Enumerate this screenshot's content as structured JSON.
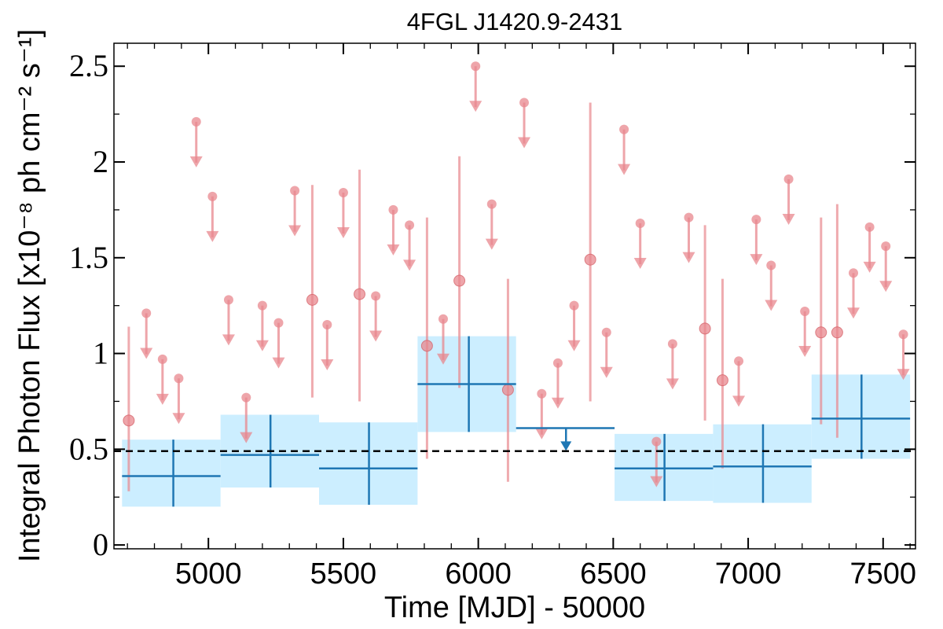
{
  "chart_data": {
    "type": "scatter",
    "title": "4FGL J1420.9-2431",
    "xlabel": "Time [MJD] - 50000",
    "ylabel": "Integral Photon Flux [x10⁻⁸ ph cm⁻² s⁻¹]",
    "xlim": [
      4650,
      7620
    ],
    "ylim": [
      -0.02,
      2.62
    ],
    "xticks": [
      5000,
      5500,
      6000,
      6500,
      7000,
      7500
    ],
    "xtick_labels": [
      "5000",
      "5500",
      "6000",
      "6500",
      "7000",
      "7500"
    ],
    "yticks": [
      0,
      0.5,
      1,
      1.5,
      2,
      2.5
    ],
    "ytick_labels": [
      "0",
      "0.5",
      "1",
      "1.5",
      "2",
      "2.5"
    ],
    "grid": false,
    "reference_line": {
      "y": 0.49,
      "style": "dashed"
    },
    "colors": {
      "fine_bins": "#e8878d",
      "coarse_bins": "#1f77b4",
      "coarse_band": "#cceeff",
      "reference": "#000000"
    },
    "fine_bin_upper_limits": [
      {
        "x": 4770,
        "y": 1.21
      },
      {
        "x": 4830,
        "y": 0.97
      },
      {
        "x": 4890,
        "y": 0.87
      },
      {
        "x": 4955,
        "y": 2.21
      },
      {
        "x": 5015,
        "y": 1.82
      },
      {
        "x": 5075,
        "y": 1.28
      },
      {
        "x": 5140,
        "y": 0.77
      },
      {
        "x": 5200,
        "y": 1.25
      },
      {
        "x": 5260,
        "y": 1.16
      },
      {
        "x": 5320,
        "y": 1.85
      },
      {
        "x": 5440,
        "y": 1.15
      },
      {
        "x": 5500,
        "y": 1.84
      },
      {
        "x": 5620,
        "y": 1.3
      },
      {
        "x": 5685,
        "y": 1.75
      },
      {
        "x": 5745,
        "y": 1.67
      },
      {
        "x": 5870,
        "y": 1.18
      },
      {
        "x": 5990,
        "y": 2.5
      },
      {
        "x": 6050,
        "y": 1.78
      },
      {
        "x": 6170,
        "y": 2.31
      },
      {
        "x": 6235,
        "y": 0.79
      },
      {
        "x": 6295,
        "y": 0.95
      },
      {
        "x": 6355,
        "y": 1.25
      },
      {
        "x": 6475,
        "y": 1.11
      },
      {
        "x": 6540,
        "y": 2.17
      },
      {
        "x": 6600,
        "y": 1.68
      },
      {
        "x": 6660,
        "y": 0.54
      },
      {
        "x": 6720,
        "y": 1.05
      },
      {
        "x": 6780,
        "y": 1.71
      },
      {
        "x": 6965,
        "y": 0.96
      },
      {
        "x": 7030,
        "y": 1.7
      },
      {
        "x": 7085,
        "y": 1.46
      },
      {
        "x": 7150,
        "y": 1.91
      },
      {
        "x": 7210,
        "y": 1.22
      },
      {
        "x": 7390,
        "y": 1.42
      },
      {
        "x": 7450,
        "y": 1.66
      },
      {
        "x": 7510,
        "y": 1.56
      },
      {
        "x": 7575,
        "y": 1.1
      }
    ],
    "fine_bin_detections": [
      {
        "x": 4705,
        "y": 0.65,
        "ylow": 0.28,
        "yhigh": 1.14
      },
      {
        "x": 5385,
        "y": 1.28,
        "ylow": 0.77,
        "yhigh": 1.88
      },
      {
        "x": 5560,
        "y": 1.31,
        "ylow": 0.75,
        "yhigh": 1.96
      },
      {
        "x": 5810,
        "y": 1.04,
        "ylow": 0.45,
        "yhigh": 1.71
      },
      {
        "x": 5930,
        "y": 1.38,
        "ylow": 0.82,
        "yhigh": 2.03
      },
      {
        "x": 6110,
        "y": 0.81,
        "ylow": 0.33,
        "yhigh": 1.39
      },
      {
        "x": 6415,
        "y": 1.49,
        "ylow": 0.75,
        "yhigh": 2.31
      },
      {
        "x": 6840,
        "y": 1.13,
        "ylow": 0.65,
        "yhigh": 1.67
      },
      {
        "x": 6905,
        "y": 0.86,
        "ylow": 0.4,
        "yhigh": 1.39
      },
      {
        "x": 7270,
        "y": 1.11,
        "ylow": 0.63,
        "yhigh": 1.71
      },
      {
        "x": 7330,
        "y": 1.11,
        "ylow": 0.56,
        "yhigh": 1.78
      }
    ],
    "coarse_bins": [
      {
        "x0": 4680,
        "x1": 5045,
        "xc": 4870,
        "y": 0.36,
        "ylow": 0.2,
        "yhigh": 0.55
      },
      {
        "x0": 5045,
        "x1": 5410,
        "xc": 5230,
        "y": 0.47,
        "ylow": 0.3,
        "yhigh": 0.68
      },
      {
        "x0": 5410,
        "x1": 5775,
        "xc": 5595,
        "y": 0.4,
        "ylow": 0.21,
        "yhigh": 0.64
      },
      {
        "x0": 5775,
        "x1": 6140,
        "xc": 5965,
        "y": 0.84,
        "ylow": 0.59,
        "yhigh": 1.09
      },
      {
        "x0": 6505,
        "x1": 6870,
        "xc": 6690,
        "y": 0.4,
        "ylow": 0.23,
        "yhigh": 0.58
      },
      {
        "x0": 6870,
        "x1": 7235,
        "xc": 7055,
        "y": 0.41,
        "ylow": 0.22,
        "yhigh": 0.63
      },
      {
        "x0": 7235,
        "x1": 7600,
        "xc": 7420,
        "y": 0.66,
        "ylow": 0.45,
        "yhigh": 0.89
      }
    ],
    "coarse_upper_limits": [
      {
        "x0": 6140,
        "x1": 6505,
        "xc": 6325,
        "y": 0.61
      }
    ]
  }
}
